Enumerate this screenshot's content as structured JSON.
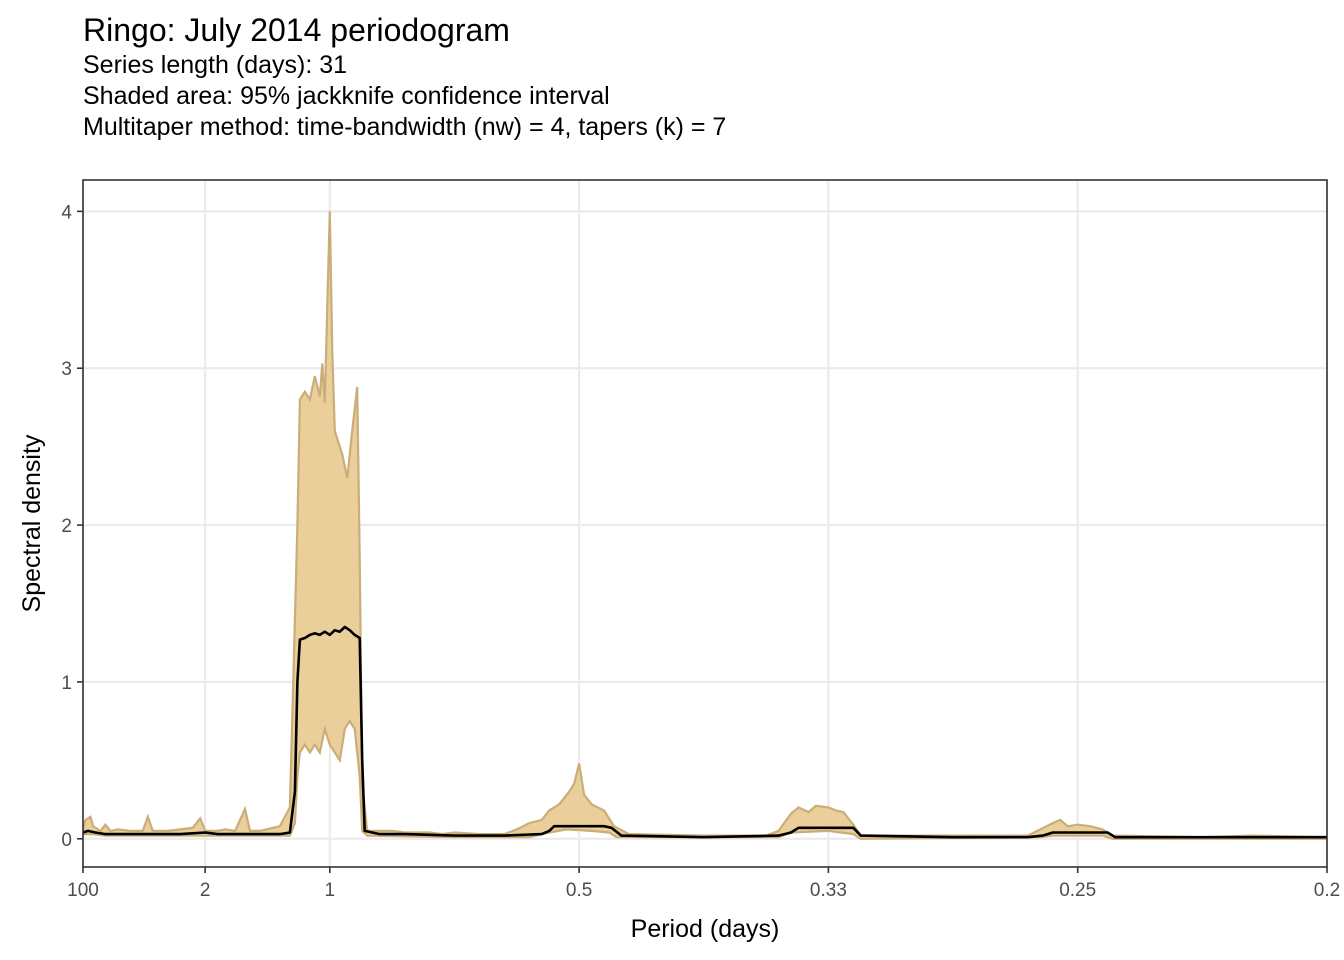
{
  "chart_data": {
    "type": "area",
    "title": "Ringo: July 2014 periodogram",
    "subtitle_lines": [
      "Series length (days): 31",
      "Shaded area: 95% jackknife confidence interval",
      "Multitaper method: time-bandwidth (nw) = 4, tapers (k) = 7"
    ],
    "xlabel": "Period (days)",
    "ylabel": "Spectral density",
    "x_axis_unit": "cycles per day (axis labelled as period)",
    "xlim": [
      0.01,
      5
    ],
    "ylim": [
      -0.18,
      4.2
    ],
    "x_ticks": [
      {
        "value": 0.01,
        "label": "100"
      },
      {
        "value": 0.5,
        "label": "2"
      },
      {
        "value": 1,
        "label": "1"
      },
      {
        "value": 2,
        "label": "0.5"
      },
      {
        "value": 3,
        "label": "0.33"
      },
      {
        "value": 4,
        "label": "0.25"
      },
      {
        "value": 5,
        "label": "0.2"
      }
    ],
    "y_ticks": [
      0,
      1,
      2,
      3,
      4
    ],
    "grid": true,
    "colors": {
      "band_fill": "#EBCF9A",
      "band_edge": "#C9AE7A",
      "line": "#000000",
      "grid": "#EBEBEB",
      "panel_border": "#333333"
    },
    "series": [
      {
        "role": "upper",
        "points": [
          [
            0.01,
            0.06
          ],
          [
            0.02,
            0.12
          ],
          [
            0.04,
            0.14
          ],
          [
            0.05,
            0.08
          ],
          [
            0.08,
            0.05
          ],
          [
            0.1,
            0.09
          ],
          [
            0.12,
            0.05
          ],
          [
            0.15,
            0.06
          ],
          [
            0.2,
            0.05
          ],
          [
            0.25,
            0.05
          ],
          [
            0.27,
            0.14
          ],
          [
            0.29,
            0.05
          ],
          [
            0.35,
            0.05
          ],
          [
            0.4,
            0.06
          ],
          [
            0.45,
            0.07
          ],
          [
            0.48,
            0.13
          ],
          [
            0.5,
            0.05
          ],
          [
            0.55,
            0.05
          ],
          [
            0.58,
            0.06
          ],
          [
            0.62,
            0.05
          ],
          [
            0.66,
            0.19
          ],
          [
            0.68,
            0.05
          ],
          [
            0.72,
            0.05
          ],
          [
            0.8,
            0.08
          ],
          [
            0.84,
            0.2
          ],
          [
            0.87,
            2.0
          ],
          [
            0.88,
            2.8
          ],
          [
            0.9,
            2.85
          ],
          [
            0.92,
            2.8
          ],
          [
            0.94,
            2.95
          ],
          [
            0.96,
            2.82
          ],
          [
            0.97,
            3.03
          ],
          [
            0.98,
            2.78
          ],
          [
            0.99,
            3.4
          ],
          [
            1.0,
            4.0
          ],
          [
            1.01,
            3.1
          ],
          [
            1.02,
            2.6
          ],
          [
            1.05,
            2.45
          ],
          [
            1.07,
            2.3
          ],
          [
            1.09,
            2.6
          ],
          [
            1.11,
            2.88
          ],
          [
            1.12,
            1.8
          ],
          [
            1.13,
            0.35
          ],
          [
            1.15,
            0.05
          ],
          [
            1.2,
            0.05
          ],
          [
            1.25,
            0.05
          ],
          [
            1.3,
            0.04
          ],
          [
            1.4,
            0.04
          ],
          [
            1.45,
            0.03
          ],
          [
            1.5,
            0.04
          ],
          [
            1.6,
            0.03
          ],
          [
            1.7,
            0.03
          ],
          [
            1.75,
            0.06
          ],
          [
            1.8,
            0.1
          ],
          [
            1.85,
            0.12
          ],
          [
            1.88,
            0.18
          ],
          [
            1.92,
            0.22
          ],
          [
            1.96,
            0.3
          ],
          [
            1.98,
            0.35
          ],
          [
            2.0,
            0.48
          ],
          [
            2.02,
            0.28
          ],
          [
            2.05,
            0.22
          ],
          [
            2.1,
            0.18
          ],
          [
            2.14,
            0.08
          ],
          [
            2.2,
            0.03
          ],
          [
            2.5,
            0.02
          ],
          [
            2.75,
            0.02
          ],
          [
            2.8,
            0.05
          ],
          [
            2.85,
            0.16
          ],
          [
            2.88,
            0.2
          ],
          [
            2.92,
            0.17
          ],
          [
            2.95,
            0.21
          ],
          [
            3.0,
            0.2
          ],
          [
            3.03,
            0.18
          ],
          [
            3.06,
            0.17
          ],
          [
            3.1,
            0.09
          ],
          [
            3.13,
            0.02
          ],
          [
            3.5,
            0.02
          ],
          [
            3.8,
            0.02
          ],
          [
            3.85,
            0.06
          ],
          [
            3.9,
            0.1
          ],
          [
            3.93,
            0.12
          ],
          [
            3.96,
            0.08
          ],
          [
            4.0,
            0.09
          ],
          [
            4.05,
            0.08
          ],
          [
            4.1,
            0.06
          ],
          [
            4.14,
            0.02
          ],
          [
            4.5,
            0.01
          ],
          [
            4.7,
            0.02
          ],
          [
            5.0,
            0.01
          ]
        ]
      },
      {
        "role": "lower",
        "points": [
          [
            0.01,
            0.03
          ],
          [
            0.05,
            0.03
          ],
          [
            0.1,
            0.02
          ],
          [
            0.2,
            0.02
          ],
          [
            0.3,
            0.02
          ],
          [
            0.4,
            0.02
          ],
          [
            0.5,
            0.02
          ],
          [
            0.6,
            0.02
          ],
          [
            0.7,
            0.02
          ],
          [
            0.8,
            0.02
          ],
          [
            0.84,
            0.02
          ],
          [
            0.86,
            0.1
          ],
          [
            0.87,
            0.4
          ],
          [
            0.88,
            0.55
          ],
          [
            0.9,
            0.6
          ],
          [
            0.92,
            0.55
          ],
          [
            0.94,
            0.6
          ],
          [
            0.96,
            0.55
          ],
          [
            0.98,
            0.7
          ],
          [
            1.0,
            0.6
          ],
          [
            1.02,
            0.55
          ],
          [
            1.04,
            0.5
          ],
          [
            1.06,
            0.7
          ],
          [
            1.08,
            0.75
          ],
          [
            1.1,
            0.7
          ],
          [
            1.12,
            0.4
          ],
          [
            1.13,
            0.05
          ],
          [
            1.15,
            0.02
          ],
          [
            1.5,
            0.01
          ],
          [
            1.8,
            0.01
          ],
          [
            1.88,
            0.04
          ],
          [
            1.95,
            0.06
          ],
          [
            2.05,
            0.05
          ],
          [
            2.12,
            0.04
          ],
          [
            2.15,
            0.01
          ],
          [
            2.8,
            0.01
          ],
          [
            2.85,
            0.04
          ],
          [
            3.0,
            0.05
          ],
          [
            3.1,
            0.03
          ],
          [
            3.13,
            0.0
          ],
          [
            3.85,
            0.01
          ],
          [
            3.9,
            0.02
          ],
          [
            4.1,
            0.02
          ],
          [
            4.14,
            0.0
          ],
          [
            5.0,
            0.0
          ]
        ]
      },
      {
        "role": "estimate",
        "points": [
          [
            0.01,
            0.04
          ],
          [
            0.03,
            0.05
          ],
          [
            0.06,
            0.04
          ],
          [
            0.1,
            0.03
          ],
          [
            0.2,
            0.03
          ],
          [
            0.3,
            0.03
          ],
          [
            0.4,
            0.03
          ],
          [
            0.5,
            0.04
          ],
          [
            0.55,
            0.03
          ],
          [
            0.6,
            0.03
          ],
          [
            0.7,
            0.03
          ],
          [
            0.8,
            0.03
          ],
          [
            0.84,
            0.04
          ],
          [
            0.86,
            0.3
          ],
          [
            0.87,
            1.0
          ],
          [
            0.88,
            1.27
          ],
          [
            0.9,
            1.28
          ],
          [
            0.92,
            1.3
          ],
          [
            0.94,
            1.31
          ],
          [
            0.96,
            1.3
          ],
          [
            0.98,
            1.32
          ],
          [
            1.0,
            1.3
          ],
          [
            1.02,
            1.33
          ],
          [
            1.04,
            1.32
          ],
          [
            1.06,
            1.35
          ],
          [
            1.08,
            1.33
          ],
          [
            1.1,
            1.3
          ],
          [
            1.12,
            1.28
          ],
          [
            1.13,
            0.5
          ],
          [
            1.14,
            0.05
          ],
          [
            1.2,
            0.03
          ],
          [
            1.3,
            0.03
          ],
          [
            1.5,
            0.02
          ],
          [
            1.7,
            0.02
          ],
          [
            1.85,
            0.03
          ],
          [
            1.88,
            0.05
          ],
          [
            1.9,
            0.08
          ],
          [
            2.0,
            0.08
          ],
          [
            2.1,
            0.08
          ],
          [
            2.13,
            0.07
          ],
          [
            2.17,
            0.02
          ],
          [
            2.5,
            0.01
          ],
          [
            2.8,
            0.02
          ],
          [
            2.85,
            0.04
          ],
          [
            2.88,
            0.07
          ],
          [
            3.0,
            0.07
          ],
          [
            3.1,
            0.07
          ],
          [
            3.13,
            0.02
          ],
          [
            3.5,
            0.01
          ],
          [
            3.8,
            0.01
          ],
          [
            3.86,
            0.02
          ],
          [
            3.9,
            0.04
          ],
          [
            4.0,
            0.04
          ],
          [
            4.12,
            0.04
          ],
          [
            4.15,
            0.01
          ],
          [
            4.5,
            0.01
          ],
          [
            5.0,
            0.01
          ]
        ]
      }
    ]
  }
}
